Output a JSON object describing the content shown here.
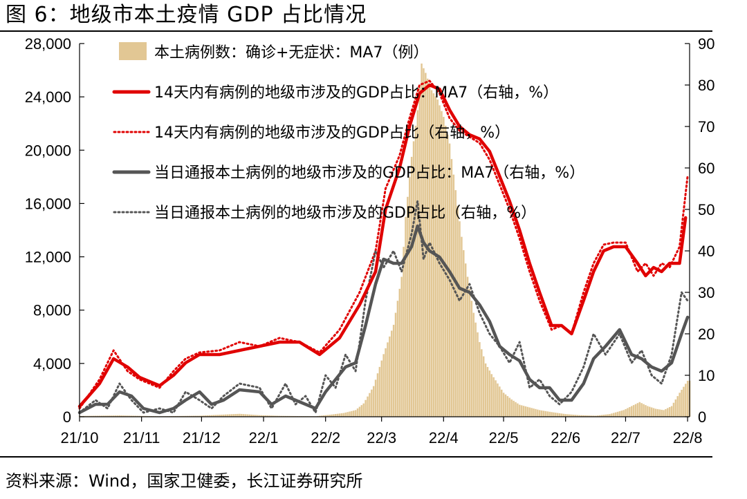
{
  "figure": {
    "title": "图 6：地级市本土疫情 GDP 占比情况",
    "source": "资料来源：Wind，国家卫健委，长江证券研究所"
  },
  "colors": {
    "bars": "#e2c794",
    "red": "#e00000",
    "gray": "#555555",
    "axis": "#000000"
  },
  "chart_data": {
    "type": "bar+line",
    "x_labels": [
      "21/10",
      "21/11",
      "21/12",
      "22/1",
      "22/2",
      "22/3",
      "22/4",
      "22/5",
      "22/6",
      "22/7",
      "22/8"
    ],
    "x_ticks_days": [
      0,
      31,
      61,
      92,
      123,
      151,
      182,
      212,
      243,
      273,
      304
    ],
    "x_range_days": [
      0,
      305
    ],
    "left_axis": {
      "min": 0,
      "max": 28000,
      "ticks": [
        "0",
        "4,000",
        "8,000",
        "12,000",
        "16,000",
        "20,000",
        "24,000",
        "28,000"
      ]
    },
    "right_axis": {
      "min": 0,
      "max": 90,
      "ticks": [
        "0",
        "10",
        "20",
        "30",
        "40",
        "50",
        "60",
        "70",
        "80",
        "90"
      ]
    },
    "series": [
      {
        "name": "本土病例数：确诊+无症状：MA7（例）",
        "type": "bar",
        "axis": "left",
        "color": "#e2c794",
        "points": [
          [
            0,
            60
          ],
          [
            20,
            100
          ],
          [
            40,
            40
          ],
          [
            60,
            80
          ],
          [
            80,
            220
          ],
          [
            90,
            120
          ],
          [
            100,
            70
          ],
          [
            110,
            50
          ],
          [
            118,
            40
          ],
          [
            125,
            150
          ],
          [
            132,
            280
          ],
          [
            138,
            500
          ],
          [
            142,
            1000
          ],
          [
            147,
            2300
          ],
          [
            152,
            4700
          ],
          [
            157,
            6900
          ],
          [
            161,
            10500
          ],
          [
            163,
            15000
          ],
          [
            166,
            19500
          ],
          [
            169,
            23000
          ],
          [
            171,
            26500
          ],
          [
            173,
            25800
          ],
          [
            176,
            24500
          ],
          [
            179,
            23800
          ],
          [
            182,
            22500
          ],
          [
            185,
            20500
          ],
          [
            188,
            17000
          ],
          [
            191,
            13500
          ],
          [
            194,
            10500
          ],
          [
            197,
            7800
          ],
          [
            200,
            5600
          ],
          [
            203,
            4000
          ],
          [
            206,
            3200
          ],
          [
            209,
            2500
          ],
          [
            212,
            1800
          ],
          [
            216,
            1300
          ],
          [
            220,
            900
          ],
          [
            225,
            700
          ],
          [
            230,
            500
          ],
          [
            236,
            350
          ],
          [
            243,
            200
          ],
          [
            250,
            120
          ],
          [
            258,
            80
          ],
          [
            265,
            200
          ],
          [
            272,
            500
          ],
          [
            276,
            800
          ],
          [
            280,
            1100
          ],
          [
            284,
            800
          ],
          [
            288,
            600
          ],
          [
            292,
            500
          ],
          [
            296,
            800
          ],
          [
            300,
            1800
          ],
          [
            304,
            2700
          ]
        ]
      },
      {
        "name": "14天内有病例的地级市涉及的GDP占比：MA7（右轴，%）",
        "type": "line",
        "axis": "right",
        "color": "#e00000",
        "style": "solid",
        "points": [
          [
            0,
            2.5
          ],
          [
            10,
            8
          ],
          [
            17,
            14
          ],
          [
            24,
            12
          ],
          [
            30,
            9.5
          ],
          [
            40,
            7.5
          ],
          [
            47,
            10
          ],
          [
            53,
            13
          ],
          [
            60,
            15
          ],
          [
            70,
            15
          ],
          [
            80,
            16
          ],
          [
            90,
            17
          ],
          [
            100,
            18
          ],
          [
            110,
            18
          ],
          [
            120,
            15
          ],
          [
            130,
            19
          ],
          [
            140,
            27
          ],
          [
            148,
            35
          ],
          [
            153,
            50
          ],
          [
            160,
            60
          ],
          [
            165,
            70
          ],
          [
            170,
            78
          ],
          [
            175,
            80
          ],
          [
            180,
            79
          ],
          [
            185,
            74
          ],
          [
            190,
            70
          ],
          [
            195,
            68
          ],
          [
            200,
            67
          ],
          [
            205,
            64
          ],
          [
            210,
            58
          ],
          [
            215,
            52
          ],
          [
            220,
            45
          ],
          [
            225,
            37
          ],
          [
            230,
            30
          ],
          [
            236,
            22
          ],
          [
            241,
            22
          ],
          [
            246,
            20
          ],
          [
            252,
            28
          ],
          [
            257,
            35
          ],
          [
            262,
            40
          ],
          [
            267,
            41
          ],
          [
            273,
            41
          ],
          [
            279,
            37
          ],
          [
            283,
            34
          ],
          [
            287,
            36
          ],
          [
            291,
            35
          ],
          [
            295,
            37
          ],
          [
            300,
            37
          ],
          [
            303,
            48
          ]
        ]
      },
      {
        "name": "14天内有病例的地级市涉及的GDP占比（右轴，%）",
        "type": "line",
        "axis": "right",
        "color": "#e00000",
        "style": "dotted",
        "points": [
          [
            0,
            2
          ],
          [
            10,
            9
          ],
          [
            17,
            16
          ],
          [
            24,
            11
          ],
          [
            30,
            9
          ],
          [
            40,
            7
          ],
          [
            47,
            11
          ],
          [
            53,
            14
          ],
          [
            60,
            15.5
          ],
          [
            70,
            16
          ],
          [
            80,
            18
          ],
          [
            90,
            17
          ],
          [
            100,
            19
          ],
          [
            110,
            18
          ],
          [
            120,
            15.5
          ],
          [
            130,
            21
          ],
          [
            140,
            30
          ],
          [
            148,
            40
          ],
          [
            153,
            55
          ],
          [
            160,
            63
          ],
          [
            165,
            72
          ],
          [
            170,
            80
          ],
          [
            175,
            81
          ],
          [
            180,
            78
          ],
          [
            185,
            72
          ],
          [
            190,
            69
          ],
          [
            195,
            67.5
          ],
          [
            200,
            66
          ],
          [
            205,
            62
          ],
          [
            210,
            56
          ],
          [
            215,
            50
          ],
          [
            220,
            43
          ],
          [
            225,
            35
          ],
          [
            230,
            28
          ],
          [
            236,
            21
          ],
          [
            241,
            22
          ],
          [
            246,
            20
          ],
          [
            252,
            30
          ],
          [
            257,
            37
          ],
          [
            262,
            41.5
          ],
          [
            267,
            42
          ],
          [
            273,
            42
          ],
          [
            279,
            35
          ],
          [
            283,
            37
          ],
          [
            287,
            34
          ],
          [
            291,
            37
          ],
          [
            295,
            36
          ],
          [
            300,
            41
          ],
          [
            304,
            58
          ]
        ]
      },
      {
        "name": "当日通报本土病例的地级市涉及的GDP占比：MA7（右轴，%）",
        "type": "line",
        "axis": "right",
        "color": "#555555",
        "style": "solid",
        "points": [
          [
            0,
            1
          ],
          [
            8,
            3
          ],
          [
            14,
            3
          ],
          [
            20,
            6
          ],
          [
            26,
            5
          ],
          [
            32,
            2
          ],
          [
            40,
            1
          ],
          [
            47,
            2
          ],
          [
            53,
            4
          ],
          [
            60,
            6
          ],
          [
            66,
            3
          ],
          [
            72,
            4
          ],
          [
            80,
            6.5
          ],
          [
            90,
            6
          ],
          [
            96,
            3
          ],
          [
            103,
            5
          ],
          [
            108,
            4
          ],
          [
            113,
            3
          ],
          [
            118,
            2
          ],
          [
            123,
            6
          ],
          [
            128,
            9
          ],
          [
            133,
            12
          ],
          [
            138,
            13
          ],
          [
            143,
            22
          ],
          [
            148,
            32
          ],
          [
            152,
            38
          ],
          [
            157,
            37
          ],
          [
            161,
            37
          ],
          [
            166,
            41
          ],
          [
            169,
            46
          ],
          [
            172,
            42
          ],
          [
            175,
            40
          ],
          [
            180,
            38.5
          ],
          [
            185,
            35
          ],
          [
            190,
            31
          ],
          [
            195,
            30
          ],
          [
            200,
            27
          ],
          [
            205,
            23
          ],
          [
            210,
            17
          ],
          [
            215,
            15
          ],
          [
            220,
            13.5
          ],
          [
            225,
            9
          ],
          [
            230,
            7
          ],
          [
            235,
            7
          ],
          [
            240,
            4
          ],
          [
            246,
            4
          ],
          [
            252,
            8
          ],
          [
            257,
            14
          ],
          [
            263,
            17
          ],
          [
            270,
            21
          ],
          [
            276,
            15
          ],
          [
            281,
            14
          ],
          [
            286,
            12
          ],
          [
            291,
            11
          ],
          [
            296,
            13
          ],
          [
            301,
            20
          ],
          [
            304,
            24
          ]
        ]
      },
      {
        "name": "当日通报本土病例的地级市涉及的GDP占比（右轴，%）",
        "type": "line",
        "axis": "right",
        "color": "#555555",
        "style": "dotted",
        "points": [
          [
            0,
            1
          ],
          [
            8,
            4
          ],
          [
            14,
            2
          ],
          [
            20,
            8
          ],
          [
            26,
            4
          ],
          [
            32,
            1
          ],
          [
            40,
            2
          ],
          [
            47,
            1
          ],
          [
            53,
            6
          ],
          [
            60,
            4
          ],
          [
            66,
            2
          ],
          [
            72,
            5
          ],
          [
            80,
            8
          ],
          [
            90,
            7
          ],
          [
            96,
            2
          ],
          [
            103,
            8
          ],
          [
            108,
            3
          ],
          [
            113,
            5
          ],
          [
            118,
            1
          ],
          [
            123,
            10
          ],
          [
            128,
            7
          ],
          [
            133,
            15
          ],
          [
            138,
            11
          ],
          [
            143,
            28
          ],
          [
            148,
            40
          ],
          [
            152,
            36
          ],
          [
            157,
            40
          ],
          [
            161,
            35
          ],
          [
            166,
            44
          ],
          [
            169,
            52
          ],
          [
            172,
            38
          ],
          [
            175,
            42
          ],
          [
            180,
            37
          ],
          [
            185,
            33
          ],
          [
            190,
            28
          ],
          [
            195,
            32
          ],
          [
            200,
            25
          ],
          [
            205,
            20
          ],
          [
            210,
            17
          ],
          [
            215,
            13
          ],
          [
            220,
            18
          ],
          [
            225,
            7
          ],
          [
            230,
            9
          ],
          [
            235,
            5
          ],
          [
            240,
            3
          ],
          [
            246,
            6
          ],
          [
            252,
            12
          ],
          [
            257,
            20
          ],
          [
            263,
            15
          ],
          [
            270,
            20
          ],
          [
            276,
            13
          ],
          [
            281,
            16
          ],
          [
            286,
            10
          ],
          [
            291,
            8
          ],
          [
            296,
            15
          ],
          [
            301,
            30
          ],
          [
            304,
            28
          ]
        ]
      }
    ]
  }
}
